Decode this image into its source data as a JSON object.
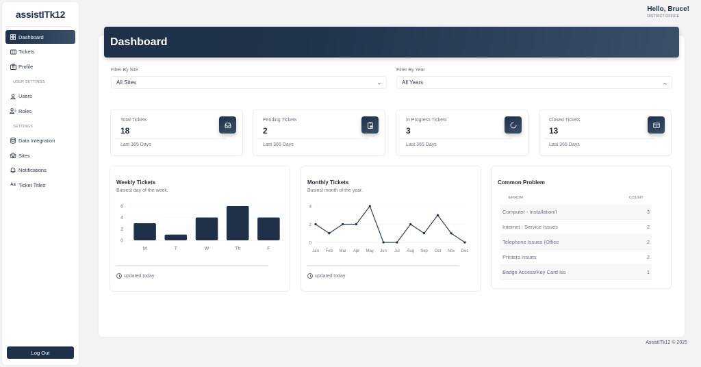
{
  "app": {
    "logo": "assistITk12",
    "footer": "AssistITk12 © 2025"
  },
  "user": {
    "greeting": "Hello, Bruce!",
    "role": "DISTRICT OFFICE"
  },
  "sidebar": {
    "items": [
      {
        "label": "Dashboard",
        "icon": "grid-icon",
        "active": true
      },
      {
        "label": "Tickets",
        "icon": "ticket-icon"
      },
      {
        "label": "Profile",
        "icon": "id-badge-icon"
      }
    ],
    "user_settings_heading": "USER SETTINGS",
    "user_settings": [
      {
        "label": "Users",
        "icon": "user-icon"
      },
      {
        "label": "Roles",
        "icon": "user-roles-icon"
      }
    ],
    "settings_heading": "SETTINGS",
    "settings": [
      {
        "label": "Data Integration",
        "icon": "database-icon"
      },
      {
        "label": "Sites",
        "icon": "school-icon"
      },
      {
        "label": "Notifications",
        "icon": "bell-icon"
      },
      {
        "label": "Ticket Titles",
        "icon": "text-format-icon"
      }
    ],
    "logout": "Log Out"
  },
  "page": {
    "title": "Dashboard"
  },
  "filters": {
    "site": {
      "label": "Filter By Site",
      "value": "All Sites"
    },
    "year": {
      "label": "Filter By Year",
      "value": "All Years"
    }
  },
  "stats": [
    {
      "title": "Total Tickets",
      "value": "18",
      "footer": "Last 365 Days",
      "icon": "inbox-icon"
    },
    {
      "title": "Pending Tickets",
      "value": "2",
      "footer": "Last 365 Days",
      "icon": "clipboard-clock-icon"
    },
    {
      "title": "In Progress Tickets",
      "value": "3",
      "footer": "Last 365 Days",
      "icon": "spinner-icon"
    },
    {
      "title": "Closed Tickets",
      "value": "13",
      "footer": "Last 365 Days",
      "icon": "closed-box-icon"
    }
  ],
  "weekly": {
    "title": "Weekly Tickets",
    "subtitle": "Busiest day of the week.",
    "updated": "updated today"
  },
  "monthly": {
    "title": "Monthly Tickets",
    "subtitle": "Busiest month of the year.",
    "updated": "updated today"
  },
  "common_problem": {
    "title": "Common Problem",
    "columns": [
      "ERROR",
      "COUNT"
    ],
    "rows": [
      {
        "error": "Computer - Installation/I",
        "count": "3"
      },
      {
        "error": "Internet - Service Issues",
        "count": "2"
      },
      {
        "error": "Telephone Issues (Office",
        "count": "2"
      },
      {
        "error": "Printers Issues",
        "count": "2"
      },
      {
        "error": "Badge Access/Key Card Iss",
        "count": "1"
      }
    ]
  },
  "colors": {
    "primary": "#1e3149",
    "primary_light": "#3a5068",
    "background": "#f3f3f3"
  },
  "chart_data": [
    {
      "type": "bar",
      "title": "Weekly Tickets",
      "subtitle": "Busiest day of the week.",
      "categories": [
        "M",
        "T",
        "W",
        "Th",
        "F"
      ],
      "values": [
        3,
        1,
        4,
        6,
        4
      ],
      "ylim": [
        0,
        6
      ],
      "yticks": [
        0,
        2,
        4,
        6
      ],
      "grid": true
    },
    {
      "type": "line",
      "title": "Monthly Tickets",
      "subtitle": "Busiest month of the year.",
      "categories": [
        "Jan",
        "Feb",
        "Mar",
        "Apr",
        "May",
        "Jun",
        "Jul",
        "Aug",
        "Sep",
        "Oct",
        "Nov",
        "Dec"
      ],
      "values": [
        2,
        1,
        2,
        2,
        4,
        0,
        0,
        2,
        1,
        3,
        1,
        0
      ],
      "ylim": [
        0,
        4
      ],
      "yticks": [
        0,
        2,
        4
      ],
      "grid": true
    }
  ]
}
